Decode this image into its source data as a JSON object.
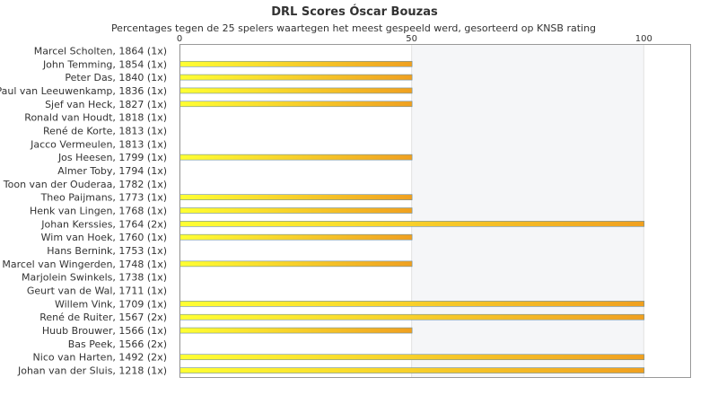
{
  "chart_data": {
    "type": "bar",
    "orientation": "horizontal",
    "title": "DRL Scores Óscar Bouzas",
    "subtitle": "Percentages tegen de 25 spelers waartegen het meest gespeeld werd, gesorteerd op KNSB rating",
    "categories": [
      "Marcel Scholten, 1864 (1x)",
      "John Temming, 1854 (1x)",
      "Peter Das, 1840 (1x)",
      "Paul van Leeuwenkamp, 1836 (1x)",
      "Sjef van Heck, 1827 (1x)",
      "Ronald van Houdt, 1818 (1x)",
      "René de Korte, 1813 (1x)",
      "Jacco Vermeulen, 1813 (1x)",
      "Jos Heesen, 1799 (1x)",
      "Almer Toby, 1794 (1x)",
      "Toon van der Ouderaa, 1782 (1x)",
      "Theo Paijmans, 1773 (1x)",
      "Henk van Lingen, 1768 (1x)",
      "Johan Kerssies, 1764 (2x)",
      "Wim van Hoek, 1760 (1x)",
      "Hans Bernink, 1753 (1x)",
      "Marcel van Wingerden, 1748 (1x)",
      "Marjolein Swinkels, 1738 (1x)",
      "Geurt van de Wal, 1711 (1x)",
      "Willem Vink, 1709 (1x)",
      "René de Ruiter, 1567 (2x)",
      "Huub Brouwer, 1566 (1x)",
      "Bas Peek, 1566 (2x)",
      "Nico van Harten, 1492 (2x)",
      "Johan van der Sluis, 1218 (1x)"
    ],
    "values": [
      0,
      50,
      50,
      50,
      50,
      0,
      0,
      0,
      50,
      0,
      0,
      50,
      50,
      100,
      50,
      0,
      50,
      0,
      0,
      100,
      100,
      50,
      0,
      100,
      100
    ],
    "xlim": [
      0,
      110
    ],
    "xticks": [
      0,
      50,
      100
    ],
    "xtick_labels": [
      "0",
      "50",
      "100"
    ],
    "xaxis_position": "top",
    "grid": true,
    "colors": {
      "bar_start": "#ffff33",
      "bar_end": "#f0a020",
      "bar_border": "#6b8fa3",
      "band": "#f5f6f8",
      "axis": "#999999"
    }
  }
}
